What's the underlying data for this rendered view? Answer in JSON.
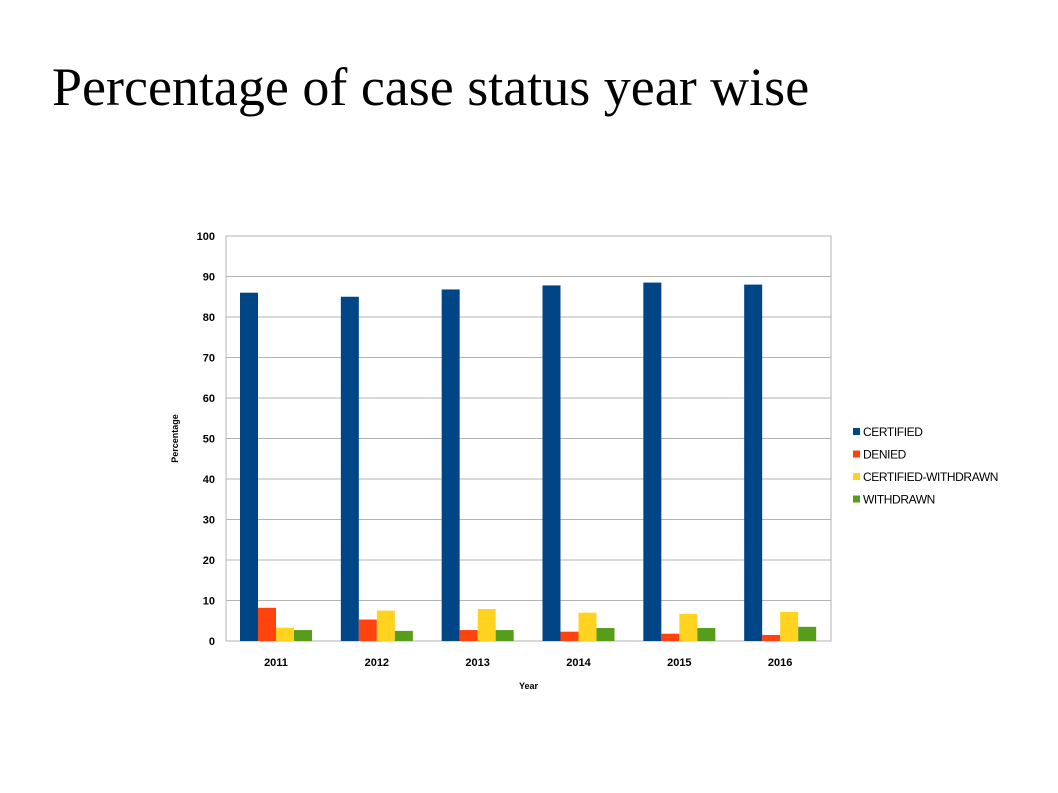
{
  "slide": {
    "title": "Percentage of case status year wise"
  },
  "chart_data": {
    "type": "bar",
    "title": "",
    "xlabel": "Year",
    "ylabel": "Percentage",
    "categories": [
      "2011",
      "2012",
      "2013",
      "2014",
      "2015",
      "2016"
    ],
    "ylim": [
      0,
      100
    ],
    "yticks": [
      "0",
      "10",
      "20",
      "30",
      "40",
      "50",
      "60",
      "70",
      "80",
      "90",
      "100"
    ],
    "grid": true,
    "legend_position": "right",
    "series": [
      {
        "name": "CERTIFIED",
        "color": "#004586",
        "values": [
          86.0,
          85.0,
          86.8,
          87.8,
          88.5,
          88.0
        ]
      },
      {
        "name": "DENIED",
        "color": "#ff420e",
        "values": [
          8.2,
          5.3,
          2.7,
          2.3,
          1.8,
          1.5
        ]
      },
      {
        "name": "CERTIFIED-WITHDRAWN",
        "color": "#ffd320",
        "values": [
          3.3,
          7.5,
          7.9,
          7.0,
          6.7,
          7.2
        ]
      },
      {
        "name": "WITHDRAWN",
        "color": "#579d1c",
        "values": [
          2.7,
          2.5,
          2.7,
          3.2,
          3.2,
          3.5
        ]
      }
    ]
  }
}
